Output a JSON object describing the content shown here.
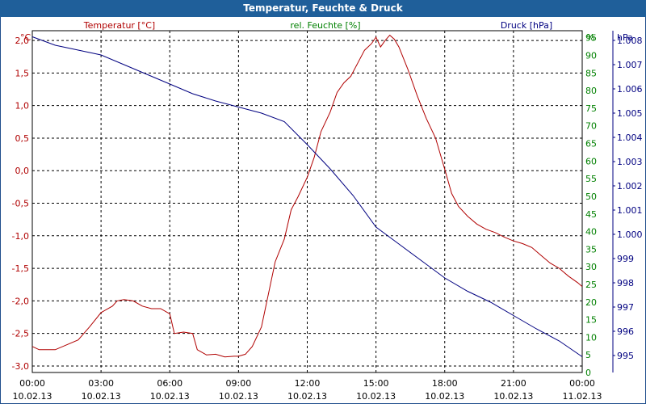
{
  "title": "Temperatur, Feuchte & Druck",
  "colors": {
    "temperature": "#b00000",
    "humidity": "#008000",
    "pressure": "#000080",
    "titlebar": "#1f5f9a"
  },
  "chart_data": {
    "type": "line",
    "title": "Temperatur, Feuchte & Druck",
    "x_ticks": [
      {
        "time": "00:00",
        "date": "10.02.13"
      },
      {
        "time": "03:00",
        "date": "10.02.13"
      },
      {
        "time": "06:00",
        "date": "10.02.13"
      },
      {
        "time": "09:00",
        "date": "10.02.13"
      },
      {
        "time": "12:00",
        "date": "10.02.13"
      },
      {
        "time": "15:00",
        "date": "10.02.13"
      },
      {
        "time": "18:00",
        "date": "10.02.13"
      },
      {
        "time": "21:00",
        "date": "10.02.13"
      },
      {
        "time": "00:00",
        "date": "11.02.13"
      }
    ],
    "xlim_hours": [
      0,
      24
    ],
    "axes": {
      "temperature": {
        "label": "Temperatur [°C]",
        "unit": "°C",
        "ylim": [
          -3.1,
          2.15
        ],
        "ticks": [
          "2,0",
          "1,5",
          "1,0",
          "0,5",
          "0,0",
          "-0,5",
          "-1,0",
          "-1,5",
          "-2,0",
          "-2,5",
          "-3,0"
        ],
        "tick_values": [
          2.0,
          1.5,
          1.0,
          0.5,
          0.0,
          -0.5,
          -1.0,
          -1.5,
          -2.0,
          -2.5,
          -3.0
        ]
      },
      "humidity": {
        "label": "rel. Feuchte [%]",
        "unit": "%",
        "ylim": [
          0,
          97
        ],
        "ticks": [
          "95",
          "90",
          "85",
          "80",
          "75",
          "70",
          "65",
          "60",
          "55",
          "50",
          "45",
          "40",
          "35",
          "30",
          "25",
          "20",
          "15",
          "10",
          "5",
          "0"
        ],
        "tick_values": [
          95,
          90,
          85,
          80,
          75,
          70,
          65,
          60,
          55,
          50,
          45,
          40,
          35,
          30,
          25,
          20,
          15,
          10,
          5,
          0
        ]
      },
      "pressure": {
        "label": "Druck [hPa]",
        "unit": "hPa",
        "ylim": [
          994.3,
          1008.4
        ],
        "ticks": [
          "1.008",
          "1.007",
          "1.006",
          "1.005",
          "1.004",
          "1.003",
          "1.002",
          "1.001",
          "1.000",
          "999",
          "998",
          "997",
          "996",
          "995"
        ],
        "tick_values": [
          1008,
          1007,
          1006,
          1005,
          1004,
          1003,
          1002,
          1001,
          1000,
          999,
          998,
          997,
          996,
          995
        ]
      }
    },
    "series": [
      {
        "name": "Temperatur",
        "axis": "temperature",
        "x": [
          0,
          0.3,
          1,
          2,
          2.5,
          3,
          3.5,
          3.7,
          4,
          4.4,
          4.8,
          5.2,
          5.6,
          6,
          6.2,
          6.6,
          7,
          7.2,
          7.6,
          8,
          8.4,
          8.8,
          9,
          9.3,
          9.6,
          10,
          10.3,
          10.6,
          11,
          11.3,
          11.6,
          12,
          12.3,
          12.6,
          13,
          13.3,
          13.6,
          13.9,
          14.2,
          14.5,
          14.8,
          15,
          15.2,
          15.4,
          15.6,
          15.8,
          16,
          16.4,
          16.8,
          17.2,
          17.6,
          18,
          18.3,
          18.6,
          19,
          19.4,
          19.8,
          20.2,
          20.6,
          21,
          21.4,
          21.8,
          22.2,
          22.6,
          23,
          23.4,
          23.8,
          24
        ],
        "values": [
          -2.7,
          -2.75,
          -2.75,
          -2.6,
          -2.4,
          -2.18,
          -2.08,
          -2.0,
          -1.98,
          -2.0,
          -2.08,
          -2.12,
          -2.12,
          -2.2,
          -2.5,
          -2.48,
          -2.5,
          -2.75,
          -2.83,
          -2.82,
          -2.86,
          -2.85,
          -2.85,
          -2.82,
          -2.7,
          -2.4,
          -1.9,
          -1.4,
          -1.05,
          -0.6,
          -0.4,
          -0.1,
          0.2,
          0.6,
          0.9,
          1.2,
          1.35,
          1.45,
          1.65,
          1.85,
          1.95,
          2.05,
          1.9,
          2.0,
          2.08,
          2.02,
          1.9,
          1.55,
          1.15,
          0.8,
          0.5,
          0.02,
          -0.35,
          -0.55,
          -0.7,
          -0.82,
          -0.9,
          -0.95,
          -1.02,
          -1.08,
          -1.12,
          -1.18,
          -1.3,
          -1.42,
          -1.5,
          -1.62,
          -1.72,
          -1.78
        ]
      },
      {
        "name": "Druck",
        "axis": "pressure",
        "x": [
          0,
          1,
          2,
          3,
          4,
          5,
          6,
          7,
          8,
          9,
          10,
          11,
          12,
          13,
          14,
          15,
          16,
          17,
          18,
          19,
          20,
          21,
          22,
          23,
          24
        ],
        "values": [
          1008.15,
          1007.8,
          1007.6,
          1007.4,
          1007.0,
          1006.6,
          1006.2,
          1005.8,
          1005.5,
          1005.25,
          1005.0,
          1004.65,
          1003.7,
          1002.7,
          1001.6,
          1000.3,
          999.6,
          998.9,
          998.2,
          997.65,
          997.2,
          996.65,
          996.1,
          995.6,
          994.95
        ]
      }
    ]
  }
}
